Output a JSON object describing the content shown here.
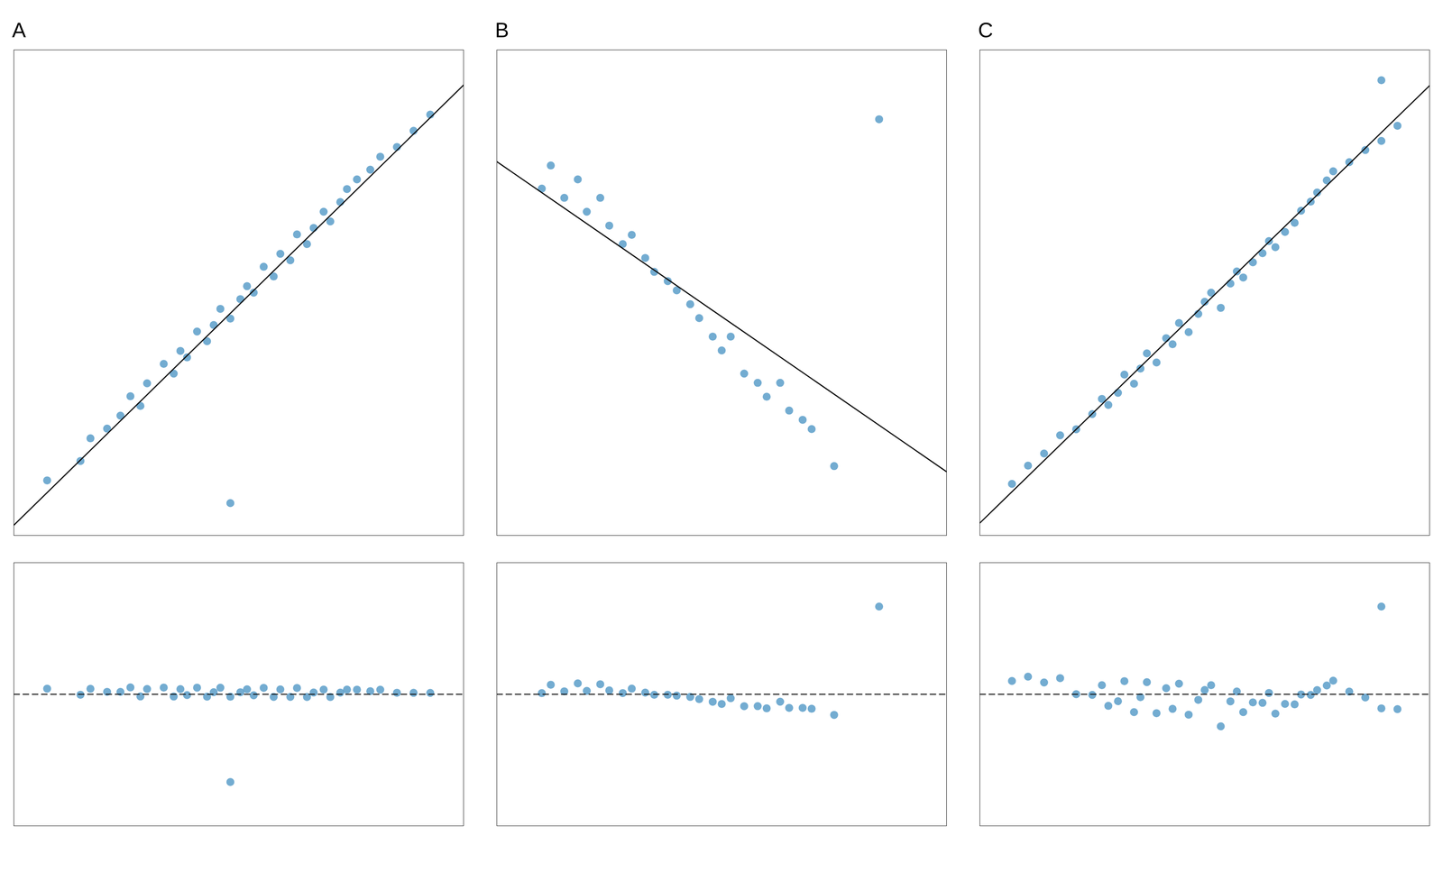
{
  "chart_data": [
    {
      "type": "scatter",
      "title": "A",
      "xlim": [
        0.0,
        13.5
      ],
      "ylim": [
        -0.5,
        14.5
      ],
      "xticks": [],
      "yticks": [],
      "tick_labels": false,
      "grid": false,
      "series": [
        {
          "type": "scatter",
          "color": "#5b9ec9",
          "x": [
            1.0,
            2.0,
            2.3,
            2.8,
            3.2,
            3.5,
            3.8,
            4.0,
            4.5,
            4.8,
            5.0,
            5.2,
            5.5,
            5.8,
            6.0,
            6.2,
            6.5,
            6.8,
            7.0,
            7.2,
            7.5,
            7.8,
            8.0,
            8.3,
            8.5,
            8.8,
            9.0,
            9.3,
            9.5,
            9.8,
            10.0,
            10.3,
            10.7,
            11.0,
            11.5,
            12.0,
            12.5,
            6.5
          ],
          "values": [
            1.2,
            1.8,
            2.5,
            2.8,
            3.2,
            3.8,
            3.5,
            4.2,
            4.8,
            4.5,
            5.2,
            5.0,
            5.8,
            5.5,
            6.0,
            6.5,
            6.2,
            6.8,
            7.2,
            7.0,
            7.8,
            7.5,
            8.2,
            8.0,
            8.8,
            8.5,
            9.0,
            9.5,
            9.2,
            9.8,
            10.2,
            10.5,
            10.8,
            11.2,
            11.5,
            12.0,
            12.5,
            0.5
          ]
        },
        {
          "type": "line",
          "color": "#111111",
          "x": [
            0.0,
            13.5
          ],
          "values": [
            -0.1836,
            13.4124
          ]
        }
      ]
    },
    {
      "type": "scatter",
      "title": "B",
      "xlim": [
        0.0,
        10.0
      ],
      "ylim": [
        1.5,
        12.0
      ],
      "xticks": [],
      "yticks": [],
      "tick_labels": false,
      "grid": false,
      "series": [
        {
          "type": "scatter",
          "color": "#5b9ec9",
          "x": [
            1.0,
            1.2,
            1.5,
            1.8,
            2.0,
            2.3,
            2.5,
            2.8,
            3.0,
            3.3,
            3.5,
            3.8,
            4.0,
            4.3,
            4.5,
            4.8,
            5.0,
            5.2,
            5.5,
            5.8,
            6.0,
            6.3,
            6.5,
            6.8,
            7.0,
            7.5,
            8.5
          ],
          "values": [
            9.0,
            9.5,
            8.8,
            9.2,
            8.5,
            8.8,
            8.2,
            7.8,
            8.0,
            7.5,
            7.2,
            7.0,
            6.8,
            6.5,
            6.2,
            5.8,
            5.5,
            5.8,
            5.0,
            4.8,
            4.5,
            4.8,
            4.2,
            4.0,
            3.8,
            3.0,
            10.5
          ]
        },
        {
          "type": "line",
          "color": "#111111",
          "x": [
            0.0,
            10.0
          ],
          "values": [
            9.5836,
            2.8777
          ]
        }
      ]
    },
    {
      "type": "scatter",
      "title": "C",
      "xlim": [
        2.0,
        16.0
      ],
      "ylim": [
        0.5,
        16.5
      ],
      "xticks": [],
      "yticks": [],
      "tick_labels": false,
      "grid": false,
      "series": [
        {
          "type": "scatter",
          "color": "#5b9ec9",
          "x": [
            3.0,
            3.5,
            4.0,
            4.5,
            5.0,
            5.5,
            5.8,
            6.0,
            6.3,
            6.5,
            6.8,
            7.0,
            7.2,
            7.5,
            7.8,
            8.0,
            8.2,
            8.5,
            8.8,
            9.0,
            9.2,
            9.5,
            9.8,
            10.0,
            10.2,
            10.5,
            10.8,
            11.0,
            11.2,
            11.5,
            11.8,
            12.0,
            12.3,
            12.5,
            12.8,
            13.0,
            13.5,
            14.0,
            14.5,
            15.0,
            14.5
          ],
          "values": [
            2.2,
            2.8,
            3.2,
            3.8,
            4.0,
            4.5,
            5.0,
            4.8,
            5.2,
            5.8,
            5.5,
            6.0,
            6.5,
            6.2,
            7.0,
            6.8,
            7.5,
            7.2,
            7.8,
            8.2,
            8.5,
            8.0,
            8.8,
            9.2,
            9.0,
            9.5,
            9.8,
            10.2,
            10.0,
            10.5,
            10.8,
            11.2,
            11.5,
            11.8,
            12.2,
            12.5,
            12.8,
            13.2,
            13.5,
            14.0,
            15.5
          ]
        },
        {
          "type": "line",
          "color": "#111111",
          "x": [
            2.0,
            16.0
          ],
          "values": [
            0.9093,
            15.321
          ]
        }
      ]
    },
    {
      "type": "scatter",
      "xlim": [
        0.0,
        13.5
      ],
      "ylim": [
        -8.7939,
        8.7939
      ],
      "xticks": [],
      "yticks": [],
      "tick_labels": false,
      "grid": false,
      "series": [
        {
          "type": "scatter",
          "color": "#5b9ec9",
          "x": [
            1.0,
            2.0,
            2.3,
            2.8,
            3.2,
            3.5,
            3.8,
            4.0,
            4.5,
            4.8,
            5.0,
            5.2,
            5.5,
            5.8,
            6.0,
            6.2,
            6.5,
            6.8,
            7.0,
            7.2,
            7.5,
            7.8,
            8.0,
            8.3,
            8.5,
            8.8,
            9.0,
            9.3,
            9.5,
            9.8,
            10.0,
            10.3,
            10.7,
            11.0,
            11.5,
            12.0,
            12.5,
            6.5
          ],
          "values": [
            0.3765,
            -0.0306,
            0.3673,
            0.1637,
            0.1609,
            0.4587,
            -0.1434,
            0.3552,
            0.4516,
            -0.1505,
            0.3481,
            -0.0533,
            0.4445,
            -0.1576,
            0.141,
            0.4395,
            -0.1626,
            0.1353,
            0.3339,
            -0.0676,
            0.4303,
            -0.1718,
            0.3267,
            -0.1754,
            0.4232,
            -0.1789,
            0.1196,
            0.3175,
            -0.1839,
            0.1139,
            0.3125,
            0.3104,
            0.2075,
            0.3054,
            0.1019,
            0.0983,
            0.0947,
            -5.8626
          ]
        },
        {
          "type": "line",
          "color": "#111111",
          "line_style": "dashed",
          "x": [
            0.0,
            13.5
          ],
          "values": [
            0,
            0
          ]
        }
      ]
    },
    {
      "type": "scatter",
      "xlim": [
        0.0,
        10.0
      ],
      "ylim": [
        -9.9246,
        9.9246
      ],
      "xticks": [],
      "yticks": [],
      "tick_labels": false,
      "grid": false,
      "series": [
        {
          "type": "scatter",
          "color": "#5b9ec9",
          "x": [
            1.0,
            1.2,
            1.5,
            1.8,
            2.0,
            2.3,
            2.5,
            2.8,
            3.0,
            3.3,
            3.5,
            3.8,
            4.0,
            4.3,
            4.5,
            4.8,
            5.0,
            5.2,
            5.5,
            5.8,
            6.0,
            6.3,
            6.5,
            6.8,
            7.0,
            7.5,
            8.5
          ],
          "values": [
            0.087,
            0.7211,
            0.2223,
            0.8235,
            0.2576,
            0.7588,
            0.2929,
            0.0941,
            0.4282,
            0.1294,
            -0.0365,
            -0.0353,
            -0.1012,
            -0.2,
            -0.3659,
            -0.5648,
            -0.7306,
            -0.2965,
            -0.8953,
            -0.8942,
            -1.0601,
            -0.5589,
            -1.0248,
            -1.0236,
            -1.0895,
            -1.5542,
            6.6164
          ]
        },
        {
          "type": "line",
          "color": "#111111",
          "line_style": "dashed",
          "x": [
            0.0,
            10.0
          ],
          "values": [
            0,
            0
          ]
        }
      ]
    },
    {
      "type": "scatter",
      "xlim": [
        2.0,
        16.0
      ],
      "ylim": [
        -2.5847,
        2.5847
      ],
      "xticks": [],
      "yticks": [],
      "tick_labels": false,
      "grid": false,
      "series": [
        {
          "type": "scatter",
          "color": "#5b9ec9",
          "x": [
            3.0,
            3.5,
            4.0,
            4.5,
            5.0,
            5.5,
            5.8,
            6.0,
            6.3,
            6.5,
            6.8,
            7.0,
            7.2,
            7.5,
            7.8,
            8.0,
            8.2,
            8.5,
            8.8,
            9.0,
            9.2,
            9.5,
            9.8,
            10.0,
            10.2,
            10.5,
            10.8,
            11.0,
            11.2,
            11.5,
            11.8,
            12.0,
            12.3,
            12.5,
            12.8,
            13.0,
            13.5,
            14.0,
            14.5,
            15.0,
            14.5
          ],
          "values": [
            0.2613,
            0.3466,
            0.2319,
            0.3172,
            0.0025,
            -0.0122,
            0.179,
            -0.2269,
            -0.1357,
            0.2584,
            -0.3505,
            -0.0563,
            0.2378,
            -0.371,
            0.1201,
            -0.2857,
            0.2084,
            -0.4004,
            -0.1093,
            0.0849,
            0.179,
            -0.6298,
            -0.1387,
            0.0555,
            -0.3504,
            -0.1592,
            -0.1681,
            0.0261,
            -0.3798,
            -0.1886,
            -0.1975,
            -0.0033,
            -0.0122,
            0.0819,
            0.1731,
            0.2672,
            0.0525,
            -0.0622,
            -0.2769,
            -0.2916,
            1.7231
          ]
        },
        {
          "type": "line",
          "color": "#111111",
          "line_style": "dashed",
          "x": [
            2.0,
            16.0
          ],
          "values": [
            0,
            0
          ]
        }
      ]
    }
  ]
}
